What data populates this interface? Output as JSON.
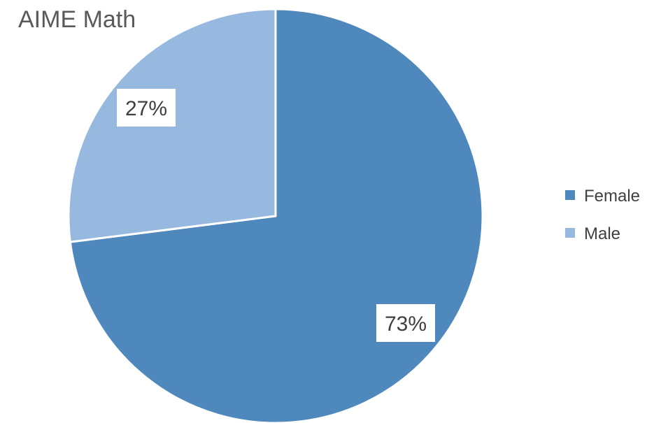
{
  "chart_data": {
    "type": "pie",
    "title": "AIME Math",
    "categories": [
      "Female",
      "Male"
    ],
    "values": [
      73,
      27
    ],
    "value_labels": [
      "73%",
      "27%"
    ],
    "colors": [
      "#4F88BC",
      "#97B8DF"
    ],
    "start_angle_deg": 0,
    "direction": "clockwise",
    "data_labels": true,
    "legend": {
      "position": "right",
      "entries": [
        "Female",
        "Male"
      ]
    }
  }
}
